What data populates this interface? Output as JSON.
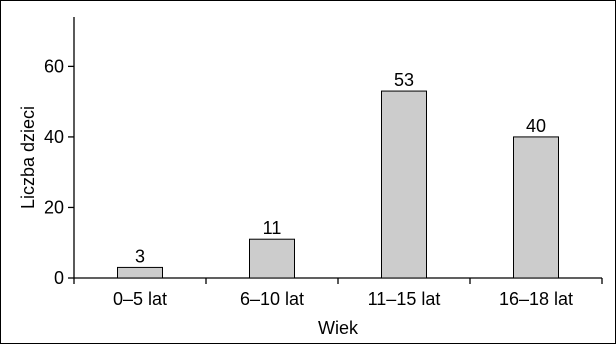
{
  "chart_data": {
    "type": "bar",
    "categories": [
      "0–5 lat",
      "6–10 lat",
      "11–15 lat",
      "16–18 lat"
    ],
    "values": [
      3,
      11,
      53,
      40
    ],
    "data_labels": [
      "3",
      "11",
      "53",
      "40"
    ],
    "xlabel": "Wiek",
    "ylabel": "Liczba dzieci",
    "ylim": [
      0,
      74
    ],
    "yticks": [
      0,
      20,
      40,
      60
    ],
    "ytick_labels": [
      "0",
      "20",
      "40",
      "60"
    ],
    "grid": false,
    "bar_color": "#cccccc",
    "bar_stroke": "#000000"
  }
}
